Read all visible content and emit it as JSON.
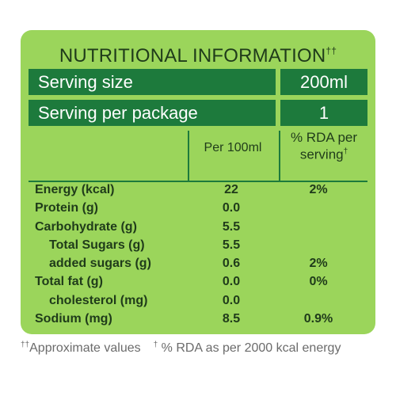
{
  "header": {
    "title": "NUTRITIONAL INFORMATION",
    "title_mark": "††"
  },
  "serving": {
    "size_label": "Serving size",
    "size_value": "200ml",
    "per_package_label": "Serving per package",
    "per_package_value": "1"
  },
  "columns": {
    "per100": "Per 100ml",
    "rda_line1": "% RDA per",
    "rda_line2": "serving",
    "rda_mark": "†"
  },
  "rows": [
    {
      "name": "Energy (kcal)",
      "per100": "22",
      "rda": "2%"
    },
    {
      "name": "Protein (g)",
      "per100": "0.0",
      "rda": ""
    },
    {
      "name": "Carbohydrate (g)",
      "per100": "5.5",
      "rda": ""
    },
    {
      "name": "Total Sugars (g)",
      "per100": "5.5",
      "rda": ""
    },
    {
      "name": "added sugars (g)",
      "per100": "0.6",
      "rda": "2%"
    },
    {
      "name": "Total fat (g)",
      "per100": "0.0",
      "rda": "0%"
    },
    {
      "name": "cholesterol (mg)",
      "per100": "0.0",
      "rda": ""
    },
    {
      "name": "Sodium (mg)",
      "per100": "8.5",
      "rda": "0.9%"
    }
  ],
  "footnotes": {
    "mark1": "††",
    "note1": "Approximate values",
    "mark2": "†",
    "note2": " % RDA as per 2000 kcal energy"
  },
  "colors": {
    "panel": "#9bd55b",
    "bar": "#1d7a3c",
    "text": "#1f3b1a"
  }
}
